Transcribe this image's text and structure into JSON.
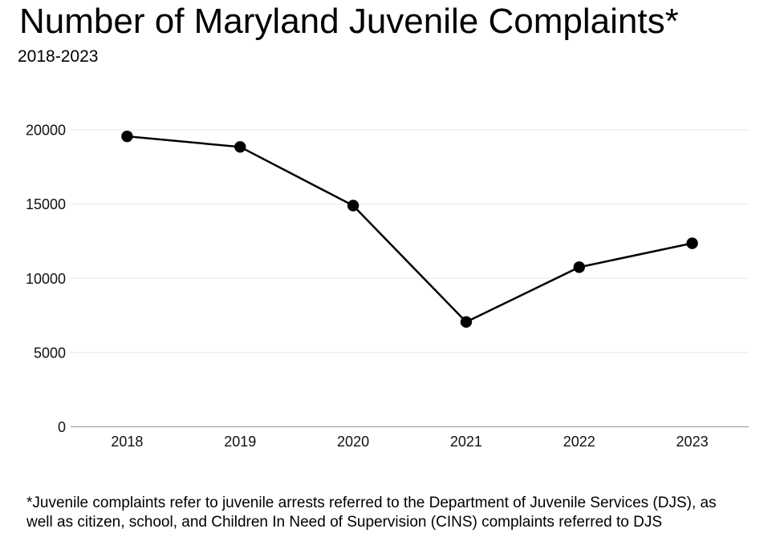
{
  "header": {
    "title": "Number of Maryland Juvenile Complaints*",
    "subtitle": "2018-2023"
  },
  "chart_data": {
    "type": "line",
    "title": "Number of Maryland Juvenile Complaints*",
    "subtitle": "2018-2023",
    "categories": [
      "2018",
      "2019",
      "2020",
      "2021",
      "2022",
      "2023"
    ],
    "series": [
      {
        "name": "Maryland juvenile complaints",
        "values": [
          19560,
          18850,
          14900,
          7060,
          10750,
          12360
        ]
      }
    ],
    "xlabel": "",
    "ylabel": "",
    "ylim": [
      0,
      20000
    ],
    "yticks": [
      0,
      5000,
      10000,
      15000,
      20000
    ],
    "grid": true,
    "legend_position": "none",
    "line_color": "#000000",
    "marker_color": "#000000",
    "gridline_color": "#e8e8e8",
    "baseline_color": "#999999"
  },
  "footnote": {
    "lines": [
      "*Juvenile complaints refer to juvenile arrests referred to the Department of Juvenile Services (DJS), as",
      "well as citizen, school, and Children In Need of Supervision (CINS) complaints referred to DJS"
    ]
  }
}
